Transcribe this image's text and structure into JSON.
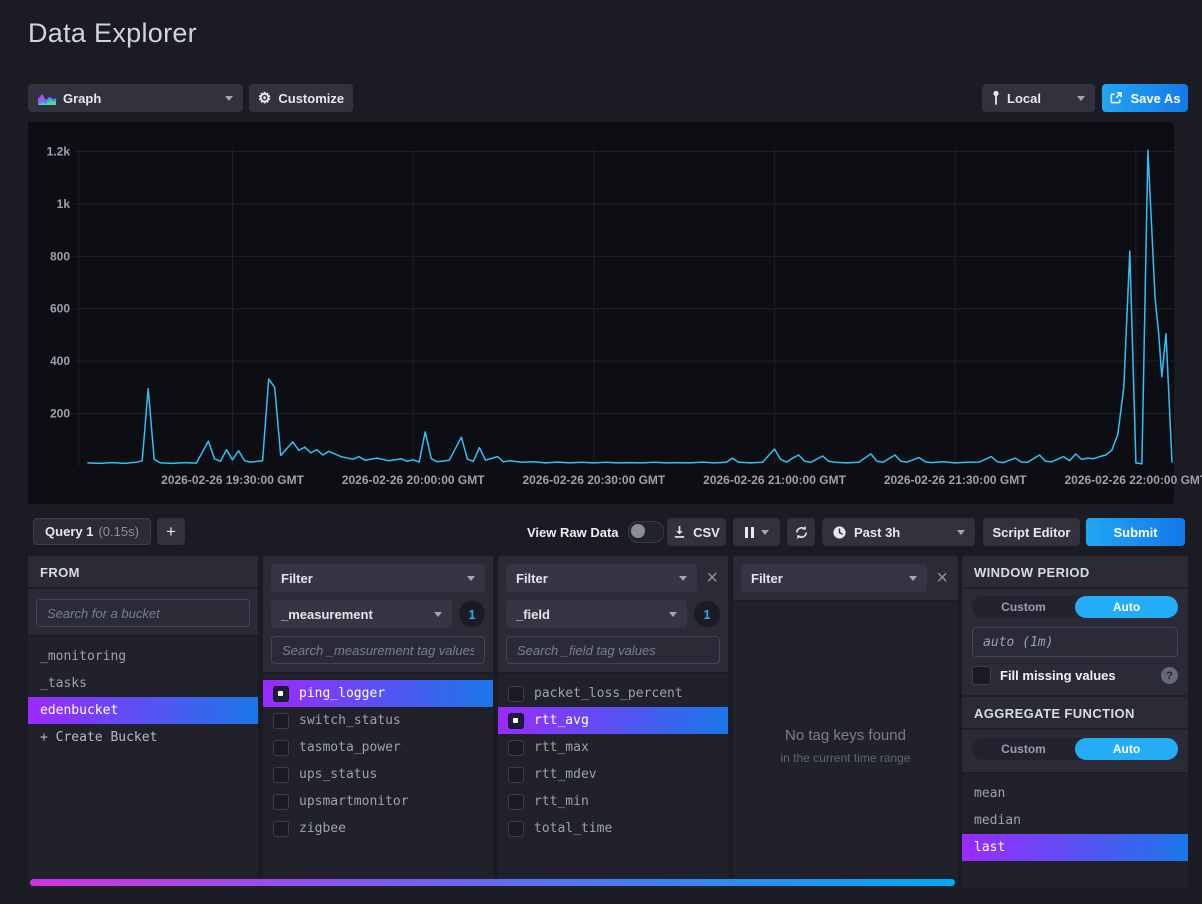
{
  "page": {
    "title": "Data Explorer"
  },
  "toolbar": {
    "view_type_label": "Graph",
    "customize_label": "Customize",
    "local_label": "Local",
    "save_as_label": "Save As"
  },
  "query_bar": {
    "query_tab_name": "Query 1",
    "query_tab_duration": "(0.15s)",
    "add_query_label": "+",
    "view_raw_data_label": "View Raw Data",
    "csv_label": "CSV",
    "time_range_label": "Past 3h",
    "script_editor_label": "Script Editor",
    "submit_label": "Submit"
  },
  "builder": {
    "from": {
      "title": "FROM",
      "search_placeholder": "Search for a bucket",
      "buckets": [
        {
          "name": "_monitoring",
          "selected": false
        },
        {
          "name": "_tasks",
          "selected": false
        },
        {
          "name": "edenbucket",
          "selected": true
        }
      ],
      "create_bucket_label": "+ Create Bucket"
    },
    "filters": [
      {
        "title": "Filter",
        "key": "_measurement",
        "count": "1",
        "search_placeholder": "Search _measurement tag values",
        "values": [
          {
            "name": "ping_logger",
            "selected": true
          },
          {
            "name": "switch_status",
            "selected": false
          },
          {
            "name": "tasmota_power",
            "selected": false
          },
          {
            "name": "ups_status",
            "selected": false
          },
          {
            "name": "upsmartmonitor",
            "selected": false
          },
          {
            "name": "zigbee",
            "selected": false
          }
        ]
      },
      {
        "title": "Filter",
        "key": "_field",
        "count": "1",
        "search_placeholder": "Search _field tag values",
        "values": [
          {
            "name": "packet_loss_percent",
            "selected": false
          },
          {
            "name": "rtt_avg",
            "selected": true
          },
          {
            "name": "rtt_max",
            "selected": false
          },
          {
            "name": "rtt_mdev",
            "selected": false
          },
          {
            "name": "rtt_min",
            "selected": false
          },
          {
            "name": "total_time",
            "selected": false
          }
        ]
      },
      {
        "title": "Filter",
        "empty_title": "No tag keys found",
        "empty_subtitle": "in the current time range"
      }
    ],
    "window_period": {
      "title": "WINDOW PERIOD",
      "custom_label": "Custom",
      "auto_label": "Auto",
      "auto_selected": true,
      "period_placeholder": "auto (1m)",
      "fill_missing_label": "Fill missing values",
      "fill_checked": false,
      "help_label": "?"
    },
    "aggregate": {
      "title": "AGGREGATE FUNCTION",
      "custom_label": "Custom",
      "auto_label": "Auto",
      "auto_selected": true,
      "functions": [
        {
          "name": "mean",
          "selected": false
        },
        {
          "name": "median",
          "selected": false
        },
        {
          "name": "last",
          "selected": true
        }
      ]
    }
  },
  "colors": {
    "accent_blue": "#22ADF6",
    "selected_gradient": [
      "#9b2aff",
      "#1a77e8"
    ],
    "scrollbar_gradient": [
      "#cf33dc",
      "#00aaf6"
    ],
    "chart_line": "#31C0F6"
  },
  "chart_data": {
    "type": "line",
    "title": "",
    "xlabel": "",
    "ylabel": "",
    "grid": true,
    "legend": false,
    "line_color": "#31C0F6",
    "ylim": [
      0,
      1260
    ],
    "x_domain_minutes": [
      0,
      180
    ],
    "y_ticks": [
      {
        "v": 200,
        "label": "200"
      },
      {
        "v": 400,
        "label": "400"
      },
      {
        "v": 600,
        "label": "600"
      },
      {
        "v": 800,
        "label": "800"
      },
      {
        "v": 1000,
        "label": "1k"
      },
      {
        "v": 1200,
        "label": "1.2k"
      }
    ],
    "x_ticks": [
      {
        "m": 24,
        "label": "2026-02-26 19:30:00 GMT"
      },
      {
        "m": 54,
        "label": "2026-02-26 20:00:00 GMT"
      },
      {
        "m": 84,
        "label": "2026-02-26 20:30:00 GMT"
      },
      {
        "m": 114,
        "label": "2026-02-26 21:00:00 GMT"
      },
      {
        "m": 144,
        "label": "2026-02-26 21:30:00 GMT"
      },
      {
        "m": 174,
        "label": "2026-02-26 22:00:00 GMT"
      }
    ],
    "series": [
      {
        "name": "rtt_avg",
        "points": [
          [
            0,
            12
          ],
          [
            2,
            10
          ],
          [
            4,
            13
          ],
          [
            6,
            10
          ],
          [
            8,
            14
          ],
          [
            9,
            20
          ],
          [
            10,
            295
          ],
          [
            11,
            25
          ],
          [
            12,
            12
          ],
          [
            14,
            10
          ],
          [
            16,
            13
          ],
          [
            18,
            11
          ],
          [
            20,
            95
          ],
          [
            21,
            28
          ],
          [
            22,
            18
          ],
          [
            23,
            62
          ],
          [
            24,
            24
          ],
          [
            25,
            58
          ],
          [
            26,
            20
          ],
          [
            27,
            15
          ],
          [
            29,
            20
          ],
          [
            30,
            332
          ],
          [
            31,
            300
          ],
          [
            32,
            40
          ],
          [
            34,
            92
          ],
          [
            35,
            60
          ],
          [
            36,
            72
          ],
          [
            37,
            50
          ],
          [
            38,
            62
          ],
          [
            39,
            42
          ],
          [
            40,
            56
          ],
          [
            42,
            36
          ],
          [
            44,
            26
          ],
          [
            45,
            36
          ],
          [
            46,
            22
          ],
          [
            48,
            30
          ],
          [
            50,
            20
          ],
          [
            52,
            28
          ],
          [
            53,
            18
          ],
          [
            54,
            24
          ],
          [
            55,
            15
          ],
          [
            56,
            130
          ],
          [
            57,
            28
          ],
          [
            58,
            16
          ],
          [
            60,
            22
          ],
          [
            62,
            110
          ],
          [
            63,
            26
          ],
          [
            64,
            18
          ],
          [
            65,
            70
          ],
          [
            66,
            22
          ],
          [
            68,
            36
          ],
          [
            69,
            16
          ],
          [
            70,
            20
          ],
          [
            72,
            14
          ],
          [
            74,
            16
          ],
          [
            76,
            12
          ],
          [
            78,
            15
          ],
          [
            80,
            12
          ],
          [
            82,
            14
          ],
          [
            84,
            12
          ],
          [
            86,
            14
          ],
          [
            88,
            12
          ],
          [
            90,
            13
          ],
          [
            92,
            12
          ],
          [
            94,
            14
          ],
          [
            96,
            12
          ],
          [
            98,
            13
          ],
          [
            100,
            12
          ],
          [
            102,
            15
          ],
          [
            104,
            12
          ],
          [
            106,
            14
          ],
          [
            107,
            30
          ],
          [
            108,
            15
          ],
          [
            110,
            12
          ],
          [
            112,
            14
          ],
          [
            114,
            65
          ],
          [
            115,
            25
          ],
          [
            116,
            15
          ],
          [
            117,
            30
          ],
          [
            118,
            42
          ],
          [
            119,
            18
          ],
          [
            120,
            14
          ],
          [
            122,
            38
          ],
          [
            123,
            18
          ],
          [
            124,
            14
          ],
          [
            126,
            12
          ],
          [
            128,
            14
          ],
          [
            130,
            46
          ],
          [
            131,
            18
          ],
          [
            132,
            14
          ],
          [
            134,
            42
          ],
          [
            135,
            18
          ],
          [
            136,
            15
          ],
          [
            138,
            32
          ],
          [
            139,
            16
          ],
          [
            140,
            13
          ],
          [
            142,
            16
          ],
          [
            144,
            12
          ],
          [
            146,
            14
          ],
          [
            148,
            15
          ],
          [
            150,
            36
          ],
          [
            151,
            16
          ],
          [
            152,
            13
          ],
          [
            154,
            30
          ],
          [
            155,
            15
          ],
          [
            156,
            14
          ],
          [
            158,
            42
          ],
          [
            159,
            18
          ],
          [
            160,
            16
          ],
          [
            162,
            36
          ],
          [
            163,
            20
          ],
          [
            164,
            46
          ],
          [
            165,
            25
          ],
          [
            166,
            30
          ],
          [
            167,
            28
          ],
          [
            168,
            36
          ],
          [
            169,
            42
          ],
          [
            170,
            60
          ],
          [
            171,
            120
          ],
          [
            172,
            300
          ],
          [
            173,
            820
          ],
          [
            174,
            12
          ],
          [
            175,
            8
          ],
          [
            176,
            1205
          ],
          [
            177.2,
            640
          ],
          [
            177.8,
            500
          ],
          [
            178.3,
            340
          ],
          [
            179,
            505
          ],
          [
            180,
            15
          ]
        ]
      }
    ]
  }
}
